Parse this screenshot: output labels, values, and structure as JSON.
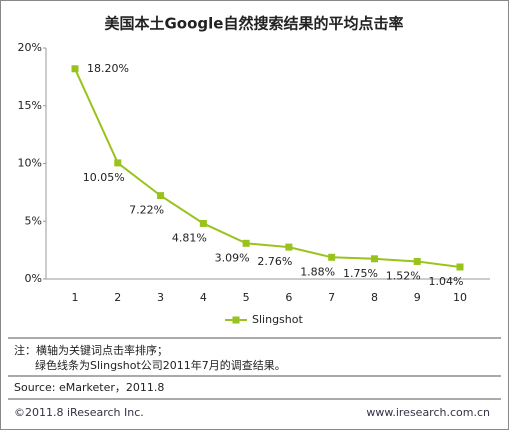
{
  "chart_data": {
    "type": "line",
    "title": "美国本土Google自然搜索结果的平均点击率",
    "categories": [
      "1",
      "2",
      "3",
      "4",
      "5",
      "6",
      "7",
      "8",
      "9",
      "10"
    ],
    "series": [
      {
        "name": "Slingshot",
        "color": "#99c31c",
        "values": [
          18.2,
          10.05,
          7.22,
          4.81,
          3.09,
          2.76,
          1.88,
          1.75,
          1.52,
          1.04
        ],
        "value_labels": [
          "18.20%",
          "10.05%",
          "7.22%",
          "4.81%",
          "3.09%",
          "2.76%",
          "1.88%",
          "1.75%",
          "1.52%",
          "1.04%"
        ]
      }
    ],
    "ylim": [
      0,
      20
    ],
    "yticks": [
      {
        "value": 0,
        "label": "0%"
      },
      {
        "value": 5,
        "label": "5%"
      },
      {
        "value": 10,
        "label": "10%"
      },
      {
        "value": 15,
        "label": "15%"
      },
      {
        "value": 20,
        "label": "20%"
      }
    ],
    "grid": false,
    "legend": "bottom"
  },
  "notes": [
    "注：横轴为关键词点击率排序；",
    "绿色线条为Slingshot公司2011年7月的调查结果。"
  ],
  "source": "Source: eMarketer，2011.8",
  "footer": {
    "copyright": "©2011.8 iResearch Inc.",
    "url": "www.iresearch.com.cn"
  }
}
